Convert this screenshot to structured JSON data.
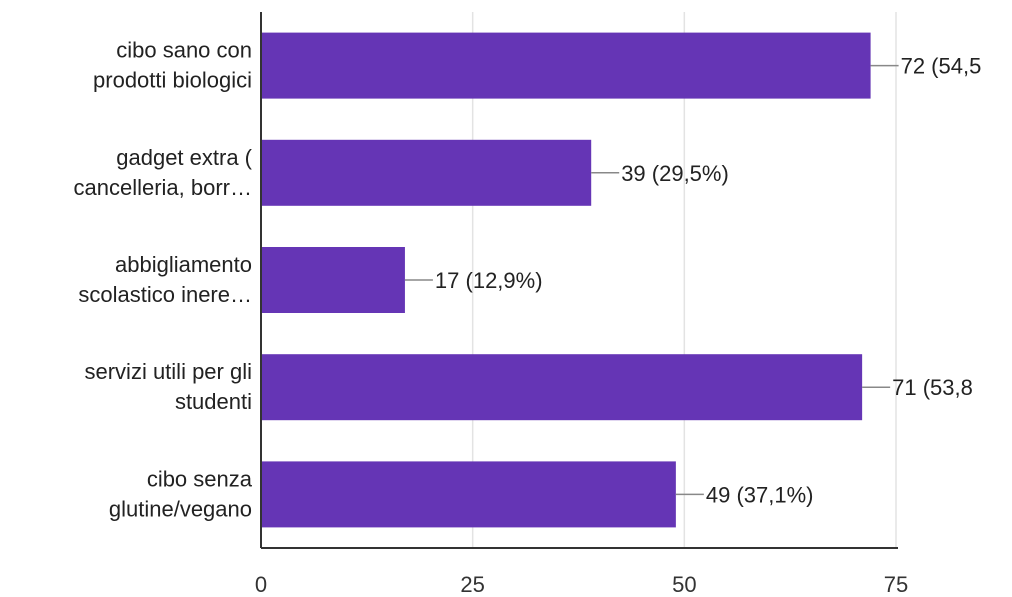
{
  "chart_data": {
    "type": "bar",
    "orientation": "horizontal",
    "categories": [
      [
        "cibo sano con",
        "prodotti biologici"
      ],
      [
        "gadget extra (",
        "cancelleria, borr…"
      ],
      [
        "abbigliamento",
        "scolastico inere…"
      ],
      [
        "servizi utili per gli",
        "studenti"
      ],
      [
        "cibo senza",
        "glutine/vegano"
      ]
    ],
    "values": [
      72,
      39,
      17,
      71,
      49
    ],
    "data_labels": [
      "72 (54,5",
      "39 (29,5%)",
      "17 (12,9%)",
      "71 (53,8",
      "49 (37,1%)"
    ],
    "xlim": [
      0,
      75
    ],
    "x_ticks": [
      0,
      25,
      50,
      75
    ],
    "grid": true,
    "bar_color": "#6535b5",
    "title": "",
    "xlabel": "",
    "ylabel": ""
  }
}
